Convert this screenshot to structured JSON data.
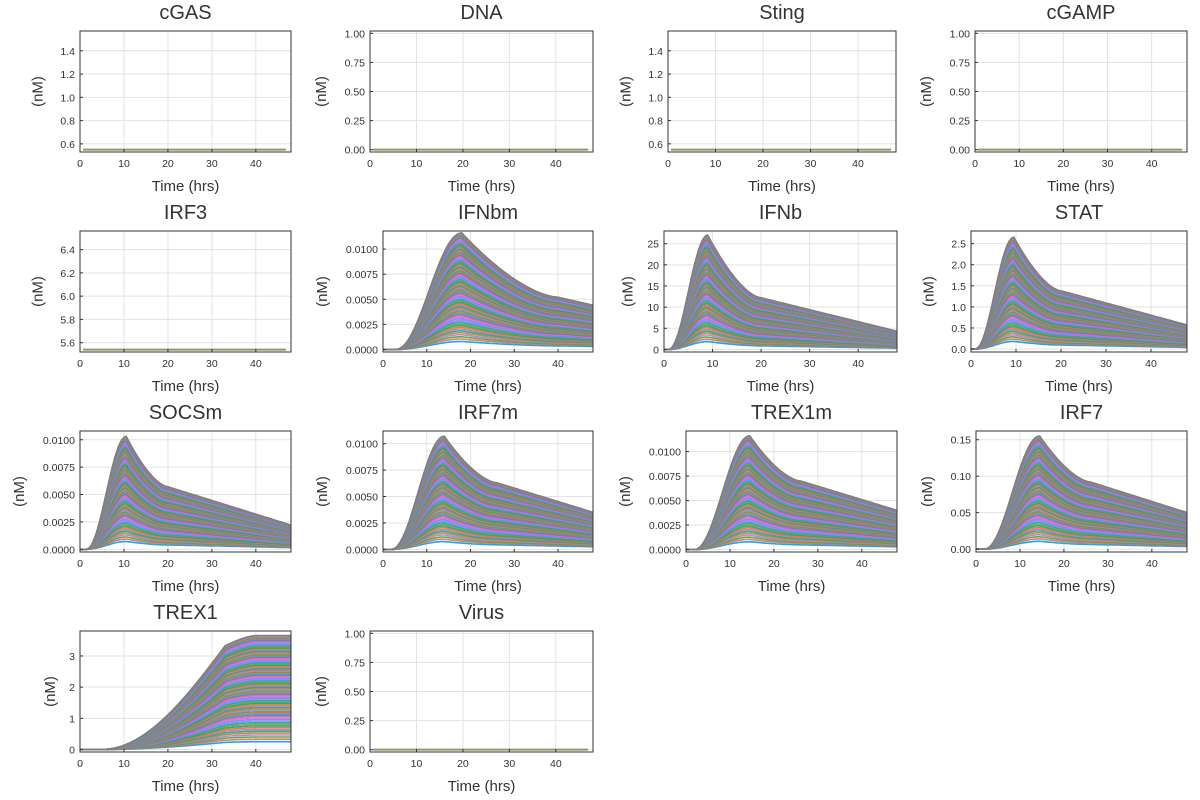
{
  "chart_data": [
    {
      "type": "line",
      "title": "cGAS",
      "xlabel": "Time (hrs)",
      "ylabel": "(nM)",
      "xticks": [
        "0",
        "10",
        "20",
        "30",
        "40"
      ],
      "yticks": [
        "0.6",
        "0.8",
        "1.0",
        "1.2",
        "1.4"
      ],
      "xlim": [
        0,
        48
      ],
      "ylim": [
        0.53,
        1.57
      ],
      "grid": true,
      "legend": "none",
      "profile": "flat",
      "flat_value": 0.55,
      "line_color": "#8a9a6a"
    },
    {
      "type": "line",
      "title": "DNA",
      "xlabel": "Time (hrs)",
      "ylabel": "(nM)",
      "xticks": [
        "0",
        "10",
        "20",
        "30",
        "40"
      ],
      "yticks": [
        "0.00",
        "0.25",
        "0.50",
        "0.75",
        "1.00"
      ],
      "xlim": [
        0,
        48
      ],
      "ylim": [
        -0.02,
        1.02
      ],
      "grid": true,
      "legend": "none",
      "profile": "flat",
      "flat_value": 0.0,
      "line_color": "#8a9a6a"
    },
    {
      "type": "line",
      "title": "Sting",
      "xlabel": "Time (hrs)",
      "ylabel": "(nM)",
      "xticks": [
        "0",
        "10",
        "20",
        "30",
        "40"
      ],
      "yticks": [
        "0.6",
        "0.8",
        "1.0",
        "1.2",
        "1.4"
      ],
      "xlim": [
        0,
        48
      ],
      "ylim": [
        0.53,
        1.57
      ],
      "grid": true,
      "legend": "none",
      "profile": "flat",
      "flat_value": 0.55,
      "line_color": "#8a9a6a"
    },
    {
      "type": "line",
      "title": "cGAMP",
      "xlabel": "Time (hrs)",
      "ylabel": "(nM)",
      "xticks": [
        "0",
        "10",
        "20",
        "30",
        "40"
      ],
      "yticks": [
        "0.00",
        "0.25",
        "0.50",
        "0.75",
        "1.00"
      ],
      "xlim": [
        0,
        48
      ],
      "ylim": [
        -0.02,
        1.02
      ],
      "grid": true,
      "legend": "none",
      "profile": "flat",
      "flat_value": 0.0,
      "line_color": "#8a9a6a"
    },
    {
      "type": "line",
      "title": "IRF3",
      "xlabel": "Time (hrs)",
      "ylabel": "(nM)",
      "xticks": [
        "0",
        "10",
        "20",
        "30",
        "40"
      ],
      "yticks": [
        "5.6",
        "5.8",
        "6.0",
        "6.2",
        "6.4"
      ],
      "xlim": [
        0,
        48
      ],
      "ylim": [
        5.52,
        6.56
      ],
      "grid": true,
      "legend": "none",
      "profile": "flat",
      "flat_value": 5.54,
      "line_color": "#8a9a6a"
    },
    {
      "type": "line",
      "title": "IFNbm",
      "xlabel": "Time (hrs)",
      "ylabel": "(nM)",
      "xticks": [
        "0",
        "10",
        "20",
        "30",
        "40"
      ],
      "yticks": [
        "0.0000",
        "0.0025",
        "0.0050",
        "0.0075",
        "0.0100"
      ],
      "xlim": [
        0,
        48
      ],
      "ylim": [
        -0.00025,
        0.0118
      ],
      "grid": true,
      "legend": "none",
      "profile": "pulse",
      "onset": 3,
      "peak_time": 18,
      "peak": 0.0116,
      "shoulder_time": 40,
      "shoulder": 0.0052,
      "end_value": 0.0044
    },
    {
      "type": "line",
      "title": "IFNb",
      "xlabel": "Time (hrs)",
      "ylabel": "(nM)",
      "xticks": [
        "0",
        "10",
        "20",
        "30",
        "40"
      ],
      "yticks": [
        "0",
        "5",
        "10",
        "15",
        "20",
        "25"
      ],
      "xlim": [
        0,
        48
      ],
      "ylim": [
        -0.6,
        28
      ],
      "grid": true,
      "legend": "none",
      "profile": "pulse",
      "onset": 1,
      "peak_time": 9,
      "peak": 27,
      "shoulder_time": 20,
      "shoulder": 12.2,
      "end_value": 4.3
    },
    {
      "type": "line",
      "title": "STAT",
      "xlabel": "Time (hrs)",
      "ylabel": "(nM)",
      "xticks": [
        "0",
        "10",
        "20",
        "30",
        "40"
      ],
      "yticks": [
        "0.0",
        "0.5",
        "1.0",
        "1.5",
        "2.0",
        "2.5"
      ],
      "xlim": [
        0,
        48
      ],
      "ylim": [
        -0.07,
        2.8
      ],
      "grid": true,
      "legend": "none",
      "profile": "pulse",
      "onset": 1,
      "peak_time": 9.5,
      "peak": 2.65,
      "shoulder_time": 20,
      "shoulder": 1.38,
      "end_value": 0.57
    },
    {
      "type": "line",
      "title": "SOCSm",
      "xlabel": "Time (hrs)",
      "ylabel": "(nM)",
      "xticks": [
        "0",
        "10",
        "20",
        "30",
        "40"
      ],
      "yticks": [
        "0.0000",
        "0.0025",
        "0.0050",
        "0.0075",
        "0.0100"
      ],
      "xlim": [
        0,
        48
      ],
      "ylim": [
        -0.00025,
        0.0108
      ],
      "grid": true,
      "legend": "none",
      "profile": "pulse",
      "onset": 1.5,
      "peak_time": 10.5,
      "peak": 0.0103,
      "shoulder_time": 20,
      "shoulder": 0.0057,
      "end_value": 0.0022
    },
    {
      "type": "line",
      "title": "IRF7m",
      "xlabel": "Time (hrs)",
      "ylabel": "(nM)",
      "xticks": [
        "0",
        "10",
        "20",
        "30",
        "40"
      ],
      "yticks": [
        "0.0000",
        "0.0025",
        "0.0050",
        "0.0075",
        "0.0100"
      ],
      "xlim": [
        0,
        48
      ],
      "ylim": [
        -0.00025,
        0.0112
      ],
      "grid": true,
      "legend": "none",
      "profile": "pulse",
      "onset": 2,
      "peak_time": 14,
      "peak": 0.0107,
      "shoulder_time": 26,
      "shoulder": 0.0063,
      "end_value": 0.0035
    },
    {
      "type": "line",
      "title": "TREX1m",
      "xlabel": "Time (hrs)",
      "ylabel": "(nM)",
      "xticks": [
        "0",
        "10",
        "20",
        "30",
        "40"
      ],
      "yticks": [
        "0.0000",
        "0.0025",
        "0.0050",
        "0.0075",
        "0.0100"
      ],
      "xlim": [
        0,
        48
      ],
      "ylim": [
        -0.00025,
        0.0121
      ],
      "grid": true,
      "legend": "none",
      "profile": "pulse",
      "onset": 2,
      "peak_time": 14.5,
      "peak": 0.0116,
      "shoulder_time": 26,
      "shoulder": 0.007,
      "end_value": 0.004
    },
    {
      "type": "line",
      "title": "IRF7",
      "xlabel": "Time (hrs)",
      "ylabel": "(nM)",
      "xticks": [
        "0",
        "10",
        "20",
        "30",
        "40"
      ],
      "yticks": [
        "0.00",
        "0.05",
        "0.10",
        "0.15"
      ],
      "xlim": [
        0,
        48
      ],
      "ylim": [
        -0.004,
        0.162
      ],
      "grid": true,
      "legend": "none",
      "profile": "pulse",
      "onset": 2,
      "peak_time": 14.5,
      "peak": 0.155,
      "shoulder_time": 26,
      "shoulder": 0.092,
      "end_value": 0.05
    },
    {
      "type": "line",
      "title": "TREX1",
      "xlabel": "Time (hrs)",
      "ylabel": "(nM)",
      "xticks": [
        "0",
        "10",
        "20",
        "30",
        "40"
      ],
      "yticks": [
        "0",
        "1",
        "2",
        "3"
      ],
      "xlim": [
        0,
        48
      ],
      "ylim": [
        -0.08,
        3.8
      ],
      "grid": true,
      "legend": "none",
      "profile": "rise",
      "onset": 5,
      "plateau_time": 40,
      "peak": 3.65
    },
    {
      "type": "line",
      "title": "Virus",
      "xlabel": "Time (hrs)",
      "ylabel": "(nM)",
      "xticks": [
        "0",
        "10",
        "20",
        "30",
        "40"
      ],
      "yticks": [
        "0.00",
        "0.25",
        "0.50",
        "0.75",
        "1.00"
      ],
      "xlim": [
        0,
        48
      ],
      "ylim": [
        -0.02,
        1.02
      ],
      "grid": true,
      "legend": "none",
      "profile": "flat",
      "flat_value": 0.0,
      "line_color": "#8a9a6a"
    }
  ],
  "palette": [
    "#009af9",
    "#e26f46",
    "#3da44d",
    "#c271d2",
    "#ac8e18",
    "#00a9ad",
    "#ed5e93",
    "#c68225",
    "#00a98d",
    "#8e971d",
    "#00a9cd",
    "#9b7fe8",
    "#618df6",
    "#f061dd",
    "#dd6478"
  ],
  "series_per_panel": 80
}
